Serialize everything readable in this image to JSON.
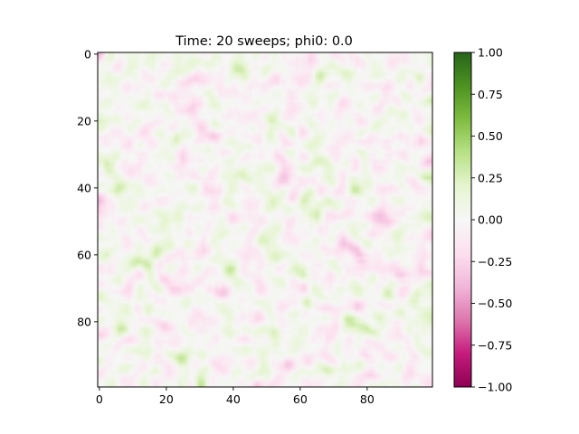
{
  "chart_data": {
    "type": "heatmap",
    "title": "Time: 20 sweeps; phi0: 0.0",
    "xlabel": "",
    "ylabel": "",
    "grid": false,
    "x_range": [
      -0.5,
      99.5
    ],
    "y_range": [
      99.5,
      -0.5
    ],
    "x_ticks": [
      0,
      20,
      40,
      60,
      80
    ],
    "x_tick_labels": [
      "0",
      "20",
      "40",
      "60",
      "80"
    ],
    "y_ticks": [
      0,
      20,
      40,
      60,
      80
    ],
    "y_tick_labels": [
      "0",
      "20",
      "40",
      "60",
      "80"
    ],
    "rows": 100,
    "cols": 100,
    "value_range": [
      -1.0,
      1.0
    ],
    "colormap": "PiYG",
    "colormap_stops": [
      "#8e0152",
      "#c51b7d",
      "#de77ae",
      "#f1b6da",
      "#fde0ef",
      "#f7f7f7",
      "#e6f5d0",
      "#b8e186",
      "#7fbc41",
      "#4d9221",
      "#276419"
    ],
    "colorbar": {
      "ticks": [
        1.0,
        0.75,
        0.5,
        0.25,
        0.0,
        -0.25,
        -0.5,
        -0.75,
        -1.0
      ],
      "tick_labels": [
        "1.00",
        "0.75",
        "0.50",
        "0.25",
        "0.00",
        "−0.25",
        "−0.50",
        "−0.75",
        "−1.00"
      ]
    },
    "field_note": "random noise field, values mostly within about -0.35 to 0.35"
  }
}
